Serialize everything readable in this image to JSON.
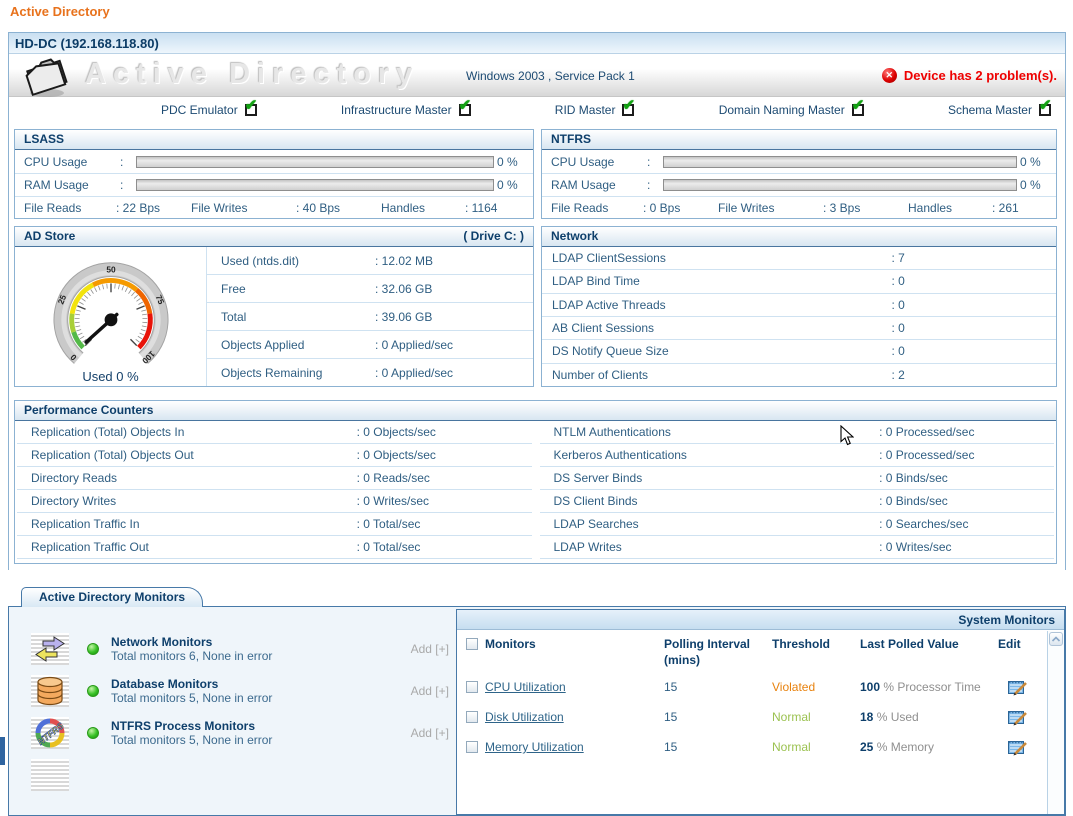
{
  "page_title": "Active Directory",
  "strings": {
    "colon": ":"
  },
  "device": {
    "name": "HD-DC (192.168.118.80)",
    "watermark": "Active Directory",
    "os": "Windows 2003 , Service Pack 1",
    "problem_text": "Device has 2 problem(s).",
    "error_glyph": "✕"
  },
  "roles": [
    {
      "label": "PDC Emulator"
    },
    {
      "label": "Infrastructure Master"
    },
    {
      "label": "RID Master"
    },
    {
      "label": "Domain Naming Master"
    },
    {
      "label": "Schema Master"
    }
  ],
  "lsass": {
    "title": "LSASS",
    "cpu_label": "CPU Usage",
    "cpu_value": "0 %",
    "ram_label": "RAM Usage",
    "ram_value": "0 %",
    "stats": [
      {
        "k": "File Reads",
        "v": ": 22 Bps"
      },
      {
        "k": "File Writes",
        "v": ": 40 Bps"
      },
      {
        "k": "Handles",
        "v": ": 1164"
      }
    ]
  },
  "ntfrs": {
    "title": "NTFRS",
    "cpu_label": "CPU Usage",
    "cpu_value": "0 %",
    "ram_label": "RAM Usage",
    "ram_value": "0 %",
    "stats": [
      {
        "k": "File Reads",
        "v": ": 0 Bps"
      },
      {
        "k": "File Writes",
        "v": ": 3 Bps"
      },
      {
        "k": "Handles",
        "v": ": 261"
      }
    ]
  },
  "ad_store": {
    "title": "AD Store",
    "drive": "( Drive C: )",
    "gauge_label": "Used 0 %",
    "gauge_ticks": [
      "0",
      "25",
      "50",
      "75",
      "100"
    ],
    "rows": [
      {
        "k": "Used (ntds.dit)",
        "v": ": 12.02 MB"
      },
      {
        "k": "Free",
        "v": ": 32.06 GB"
      },
      {
        "k": "Total",
        "v": ": 39.06 GB"
      },
      {
        "k": "Objects Applied",
        "v": ": 0 Applied/sec"
      },
      {
        "k": "Objects Remaining",
        "v": ": 0 Applied/sec"
      }
    ]
  },
  "network": {
    "title": "Network",
    "rows": [
      {
        "k": "LDAP ClientSessions",
        "v": ": 7"
      },
      {
        "k": "LDAP Bind Time",
        "v": ": 0"
      },
      {
        "k": "LDAP Active Threads",
        "v": ": 0"
      },
      {
        "k": "AB Client Sessions",
        "v": ": 0"
      },
      {
        "k": "DS Notify Queue Size",
        "v": ": 0"
      },
      {
        "k": "Number of Clients",
        "v": ": 2"
      }
    ]
  },
  "performance": {
    "title": "Performance Counters",
    "left": [
      {
        "k": "Replication (Total) Objects In",
        "v": ": 0 Objects/sec"
      },
      {
        "k": "Replication (Total) Objects Out",
        "v": ": 0 Objects/sec"
      },
      {
        "k": "Directory Reads",
        "v": ": 0 Reads/sec"
      },
      {
        "k": "Directory Writes",
        "v": ": 0 Writes/sec"
      },
      {
        "k": "Replication Traffic In",
        "v": ": 0 Total/sec"
      },
      {
        "k": "Replication Traffic Out",
        "v": ": 0 Total/sec"
      }
    ],
    "right": [
      {
        "k": "NTLM Authentications",
        "v": ": 0 Processed/sec"
      },
      {
        "k": "Kerberos Authentications",
        "v": ": 0 Processed/sec"
      },
      {
        "k": "DS Server Binds",
        "v": ": 0 Binds/sec"
      },
      {
        "k": "DS Client Binds",
        "v": ": 0 Binds/sec"
      },
      {
        "k": "LDAP Searches",
        "v": ": 0 Searches/sec"
      },
      {
        "k": "LDAP Writes",
        "v": ": 0 Writes/sec"
      }
    ]
  },
  "monitors_tab": "Active Directory Monitors",
  "monitor_groups": [
    {
      "name": "Network Monitors",
      "detail": "Total monitors 6, None in error",
      "add_label": "Add [+]"
    },
    {
      "name": "Database Monitors",
      "detail": "Total monitors 5, None in error",
      "add_label": "Add [+]"
    },
    {
      "name": "NTFRS Process Monitors",
      "detail": "Total monitors 5, None in error",
      "add_label": "Add [+]"
    }
  ],
  "system_monitors": {
    "title": "System Monitors",
    "columns": {
      "monitors": "Monitors",
      "interval_line1": "Polling Interval",
      "interval_line2": "(mins)",
      "threshold": "Threshold",
      "last_polled": "Last Polled Value",
      "edit": "Edit"
    },
    "rows": [
      {
        "name": "CPU Utilization",
        "interval": "15",
        "threshold": "Violated",
        "value_num": "100",
        "value_unit": "% Processor Time"
      },
      {
        "name": "Disk Utilization",
        "interval": "15",
        "threshold": "Normal",
        "value_num": "18",
        "value_unit": "% Used"
      },
      {
        "name": "Memory Utilization",
        "interval": "15",
        "threshold": "Normal",
        "value_num": "25",
        "value_unit": "% Memory"
      }
    ]
  },
  "colors": {
    "accent_orange": "#e8721c",
    "alert_red": "#ee0000",
    "violated_orange": "#e8820e",
    "normal_green": "#9cc251",
    "heading_navy": "#0e3f6b",
    "link_blue": "#2e6489"
  }
}
